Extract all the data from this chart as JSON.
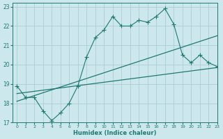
{
  "xlabel": "Humidex (Indice chaleur)",
  "background_color": "#cce8ec",
  "grid_color": "#aacdd4",
  "line_color": "#1e7872",
  "xlim": [
    -0.5,
    23
  ],
  "ylim": [
    17,
    23.2
  ],
  "yticks": [
    17,
    18,
    19,
    20,
    21,
    22,
    23
  ],
  "xticks": [
    0,
    1,
    2,
    3,
    4,
    5,
    6,
    7,
    8,
    9,
    10,
    11,
    12,
    13,
    14,
    15,
    16,
    17,
    18,
    19,
    20,
    21,
    22,
    23
  ],
  "line1_x": [
    0,
    1,
    2,
    3,
    4,
    5,
    6,
    7,
    8,
    9,
    10,
    11,
    12,
    13,
    14,
    15,
    16,
    17,
    18,
    19,
    20,
    21,
    22,
    23
  ],
  "line1_y": [
    18.9,
    18.3,
    18.3,
    17.6,
    17.1,
    17.5,
    18.0,
    18.9,
    20.4,
    21.4,
    21.8,
    22.5,
    22.0,
    22.0,
    22.3,
    22.2,
    22.5,
    22.9,
    22.1,
    20.5,
    20.1,
    20.5,
    20.1,
    19.9
  ],
  "line2_x": [
    0,
    23
  ],
  "line2_y": [
    18.1,
    21.5
  ],
  "line3_x": [
    0,
    23
  ],
  "line3_y": [
    18.5,
    19.85
  ]
}
